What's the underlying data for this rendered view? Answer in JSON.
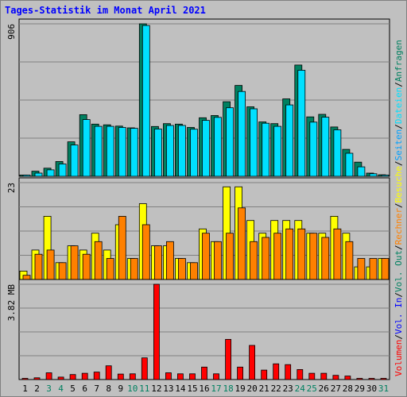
{
  "chart_data": {
    "type": "bar",
    "title": "Tages-Statistik im Monat April 2021",
    "days": [
      "1",
      "2",
      "3",
      "4",
      "5",
      "6",
      "7",
      "8",
      "9",
      "10",
      "11",
      "12",
      "13",
      "14",
      "15",
      "16",
      "17",
      "18",
      "19",
      "20",
      "21",
      "22",
      "23",
      "24",
      "25",
      "26",
      "27",
      "28",
      "29",
      "30",
      "31"
    ],
    "weekend_days": [
      "3",
      "4",
      "10",
      "11",
      "17",
      "18",
      "24",
      "25",
      "31"
    ],
    "panels": [
      {
        "id": "hits",
        "ymax_label": "906",
        "ymax": 906,
        "series": [
          {
            "name": "Anfragen",
            "color": "#008060",
            "values": [
              4,
              30,
              48,
              88,
              205,
              366,
              310,
              306,
              298,
              288,
              906,
              296,
              313,
              310,
              290,
              348,
              361,
              443,
              540,
              413,
              323,
              313,
              460,
              661,
              353,
              368,
              293,
              160,
              84,
              19,
              9
            ]
          },
          {
            "name": "Dateien",
            "color": "#00e0ff",
            "values": [
              2,
              19,
              38,
              73,
              186,
              337,
              297,
              297,
              290,
              285,
              896,
              281,
              302,
              302,
              280,
              332,
              350,
              407,
              504,
              401,
              315,
              297,
              424,
              630,
              322,
              351,
              276,
              137,
              56,
              15,
              5
            ]
          },
          {
            "name": "Seiten",
            "color": "#00a0ff",
            "values": []
          }
        ],
        "legend": [
          "Anfragen",
          "Dateien",
          "Seiten"
        ]
      },
      {
        "id": "visits",
        "ymax_label": "23",
        "ymax": 23,
        "series": [
          {
            "name": "Besuche",
            "color": "#ffff00",
            "values": [
              2,
              7,
              15,
              4,
              8,
              7,
              11,
              7,
              13,
              5,
              18,
              8,
              8,
              5,
              4,
              12,
              9,
              22,
              22,
              14,
              11,
              14,
              14,
              14,
              11,
              11,
              15,
              11,
              3,
              3,
              5
            ]
          },
          {
            "name": "Rechner",
            "color": "#ff8000",
            "values": [
              1,
              6,
              7,
              4,
              8,
              6,
              9,
              5,
              15,
              5,
              13,
              8,
              9,
              5,
              4,
              11,
              9,
              11,
              17,
              9,
              10,
              11,
              12,
              12,
              11,
              10,
              12,
              9,
              5,
              5,
              5
            ]
          }
        ],
        "legend": [
          "Besuche",
          "Rechner"
        ]
      },
      {
        "id": "volume",
        "ymax_label": "3.82 MB",
        "ymax": 3.82,
        "series": [
          {
            "name": "Volumen",
            "color": "#ff0000",
            "values": [
              0.04,
              0.07,
              0.27,
              0.1,
              0.2,
              0.25,
              0.3,
              0.55,
              0.22,
              0.23,
              0.87,
              3.82,
              0.27,
              0.23,
              0.23,
              0.5,
              0.23,
              1.61,
              0.5,
              1.37,
              0.38,
              0.63,
              0.6,
              0.4,
              0.25,
              0.25,
              0.17,
              0.14,
              0.04,
              0.04,
              0.04
            ]
          }
        ],
        "legend": [
          "Vol. Out",
          "Vol. In",
          "Volumen"
        ]
      }
    ],
    "grid": true,
    "legend_placement": "right-vertical"
  },
  "right_legend": [
    {
      "label": "Volumen",
      "color": "#ff0000"
    },
    {
      "label": "Vol. In",
      "color": "#0000ff"
    },
    {
      "label": "Vol. Out",
      "color": "#008060"
    },
    {
      "label": "Rechner",
      "color": "#ff8000"
    },
    {
      "label": "Besuche",
      "color": "#ffff00"
    },
    {
      "label": "Seiten",
      "color": "#00a0ff"
    },
    {
      "label": "Dateien",
      "color": "#00e0ff"
    },
    {
      "label": "Anfragen",
      "color": "#008060"
    }
  ],
  "colors": {
    "title": "#0000ff",
    "weekday_label": "#000000",
    "weekend_label": "#008060",
    "panel_bg": "#c0c0c0",
    "grid": "#808080"
  }
}
